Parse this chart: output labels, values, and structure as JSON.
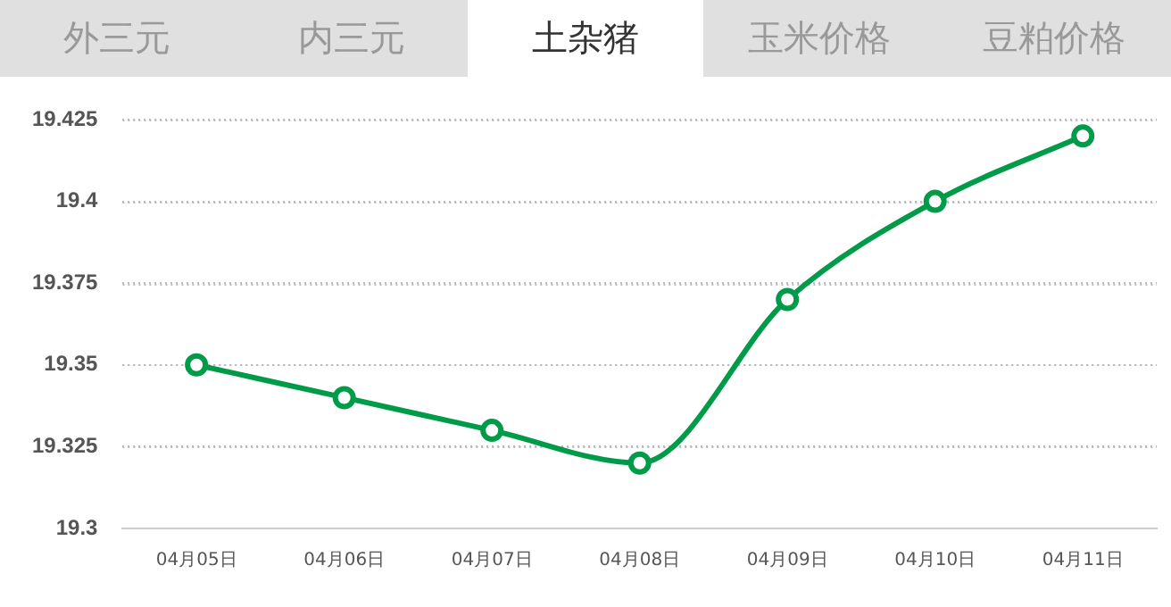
{
  "chart_data": {
    "type": "line",
    "annotations": [
      "外三元",
      "内三元",
      "土杂猪",
      "玉米价格",
      "豆粕价格"
    ],
    "categories": [
      "04月05日",
      "04月06日",
      "04月07日",
      "04月08日",
      "04月09日",
      "04月10日",
      "04月11日"
    ],
    "series": [
      {
        "color": "#009b48",
        "values": [
          19.35,
          19.34,
          19.33,
          19.32,
          19.37,
          19.4,
          19.42
        ]
      }
    ],
    "ylim": [
      19.3,
      19.425
    ],
    "yticks": [
      19.3,
      19.325,
      19.35,
      19.375,
      19.4,
      19.425
    ],
    "grid": "y",
    "legend": false,
    "marker": "circle",
    "line_style": "solid"
  }
}
